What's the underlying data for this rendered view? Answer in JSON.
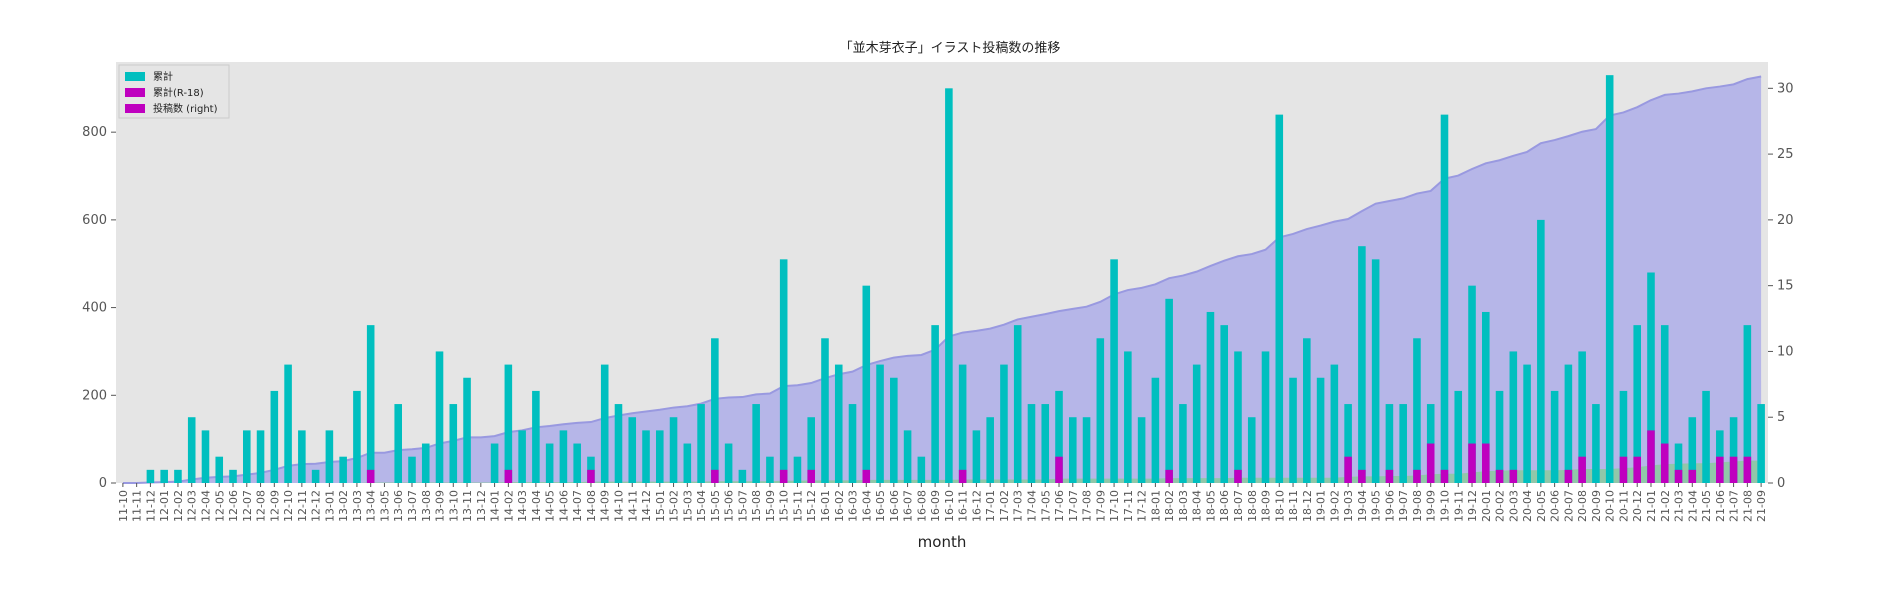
{
  "chart_data": {
    "type": "bar",
    "title": "「並木芽衣子」イラスト投稿数の推移",
    "xlabel": "month",
    "ylabel": "",
    "ylabel_right": "",
    "grid": false,
    "legend_placement": "top-left",
    "ylim_left": [
      0,
      960
    ],
    "ylim_right": [
      0,
      32
    ],
    "yticks_left": [
      "0",
      "200",
      "400",
      "600",
      "800"
    ],
    "yticks_right": [
      "0",
      "5",
      "10",
      "15",
      "20",
      "25",
      "30"
    ],
    "colors": {
      "posts_bar": "#00bfbf",
      "r18_bar": "#bf00bf",
      "cumulative_area_fill": "#b3b3e8",
      "cumulative_area_line": "#9999e0",
      "cumulative_r18_area": "#88cc99",
      "plot_background": "#e5e5e5"
    },
    "legend": [
      {
        "label": "累計",
        "color": "#00bfbf"
      },
      {
        "label": "累計(R-18)",
        "color": "#bf00bf"
      },
      {
        "label": "投稿数 (right)",
        "color": "#bf00bf"
      }
    ],
    "categories": [
      "11-10",
      "11-11",
      "11-12",
      "12-01",
      "12-02",
      "12-03",
      "12-04",
      "12-05",
      "12-06",
      "12-07",
      "12-08",
      "12-09",
      "12-10",
      "12-11",
      "12-12",
      "13-01",
      "13-02",
      "13-03",
      "13-04",
      "13-05",
      "13-06",
      "13-07",
      "13-08",
      "13-09",
      "13-10",
      "13-11",
      "13-12",
      "14-01",
      "14-02",
      "14-03",
      "14-04",
      "14-05",
      "14-06",
      "14-07",
      "14-08",
      "14-09",
      "14-10",
      "14-11",
      "14-12",
      "15-01",
      "15-02",
      "15-03",
      "15-04",
      "15-05",
      "15-06",
      "15-07",
      "15-08",
      "15-09",
      "15-10",
      "15-11",
      "15-12",
      "16-01",
      "16-02",
      "16-03",
      "16-04",
      "16-05",
      "16-06",
      "16-07",
      "16-08",
      "16-09",
      "16-10",
      "16-11",
      "16-12",
      "17-01",
      "17-02",
      "17-03",
      "17-04",
      "17-05",
      "17-06",
      "17-07",
      "17-08",
      "17-09",
      "17-10",
      "17-11",
      "17-12",
      "18-01",
      "18-02",
      "18-03",
      "18-04",
      "18-05",
      "18-06",
      "18-07",
      "18-08",
      "18-09",
      "18-10",
      "18-11",
      "18-12",
      "19-01",
      "19-02",
      "19-03",
      "19-04",
      "19-05",
      "19-06",
      "19-07",
      "19-08",
      "19-09",
      "19-10",
      "19-11",
      "19-12",
      "20-01",
      "20-02",
      "20-03",
      "20-04",
      "20-05",
      "20-06",
      "20-07",
      "20-08",
      "20-09",
      "20-10",
      "20-11",
      "20-12",
      "21-01",
      "21-02",
      "21-03",
      "21-04",
      "21-05",
      "21-06",
      "21-07",
      "21-08",
      "21-09"
    ],
    "series": [
      {
        "name": "投稿数 (right)",
        "axis": "right",
        "values": [
          0,
          0,
          1,
          1,
          1,
          5,
          4,
          2,
          1,
          4,
          4,
          7,
          9,
          4,
          1,
          4,
          2,
          7,
          12,
          0,
          6,
          2,
          3,
          10,
          6,
          8,
          0,
          3,
          9,
          4,
          7,
          3,
          4,
          3,
          2,
          9,
          6,
          5,
          4,
          4,
          5,
          3,
          6,
          11,
          3,
          1,
          6,
          2,
          17,
          2,
          5,
          11,
          9,
          6,
          15,
          9,
          8,
          4,
          2,
          12,
          30,
          9,
          4,
          5,
          9,
          12,
          6,
          6,
          7,
          5,
          5,
          11,
          17,
          10,
          5,
          8,
          14,
          6,
          9,
          13,
          12,
          10,
          5,
          10,
          28,
          8,
          11,
          8,
          9,
          6,
          18,
          17,
          6,
          6,
          11,
          6,
          28,
          7,
          15,
          13,
          7,
          10,
          9,
          20,
          7,
          9,
          10,
          6,
          31,
          7,
          12,
          16,
          12,
          3,
          5,
          7,
          4,
          5,
          12,
          6
        ]
      },
      {
        "name": "累計(R-18)",
        "axis": "right",
        "values": [
          0,
          0,
          0,
          0,
          0,
          0,
          0,
          0,
          0,
          0,
          0,
          0,
          0,
          0,
          0,
          0,
          0,
          0,
          1,
          0,
          0,
          0,
          0,
          0,
          0,
          0,
          0,
          0,
          1,
          0,
          0,
          0,
          0,
          0,
          1,
          0,
          0,
          0,
          0,
          0,
          0,
          0,
          0,
          1,
          0,
          0,
          0,
          0,
          1,
          0,
          1,
          0,
          0,
          0,
          1,
          0,
          0,
          0,
          0,
          0,
          0,
          1,
          0,
          0,
          0,
          0,
          0,
          0,
          2,
          0,
          0,
          0,
          0,
          0,
          0,
          0,
          1,
          0,
          0,
          0,
          0,
          1,
          0,
          0,
          0,
          0,
          0,
          0,
          0,
          2,
          1,
          0,
          1,
          0,
          1,
          3,
          1,
          0,
          3,
          3,
          1,
          1,
          0,
          0,
          0,
          1,
          2,
          0,
          0,
          2,
          2,
          4,
          3,
          1,
          1,
          0,
          2,
          2,
          2,
          0
        ]
      },
      {
        "name": "累計",
        "axis": "left",
        "values": [
          0,
          0,
          1,
          2,
          3,
          8,
          12,
          14,
          15,
          19,
          23,
          30,
          39,
          43,
          44,
          48,
          50,
          57,
          69,
          69,
          75,
          77,
          80,
          90,
          96,
          104,
          104,
          107,
          116,
          120,
          127,
          130,
          134,
          137,
          139,
          148,
          154,
          159,
          163,
          167,
          172,
          175,
          181,
          192,
          195,
          196,
          202,
          204,
          221,
          223,
          228,
          239,
          248,
          254,
          269,
          278,
          286,
          290,
          292,
          304,
          334,
          343,
          347,
          352,
          361,
          373,
          379,
          385,
          392,
          397,
          402,
          413,
          430,
          440,
          445,
          453,
          467,
          473,
          482,
          495,
          507,
          517,
          522,
          532,
          560,
          568,
          579,
          587,
          596,
          602,
          620,
          637,
          643,
          649,
          660,
          666,
          694,
          701,
          716,
          729,
          736,
          746,
          755,
          775,
          782,
          791,
          801,
          807,
          838,
          845,
          857,
          873,
          885,
          888,
          893,
          900,
          904,
          909,
          921,
          927
        ]
      },
      {
        "name": "累計(R-18)",
        "axis": "left",
        "values": [
          0,
          0,
          0,
          0,
          0,
          0,
          0,
          0,
          0,
          0,
          0,
          0,
          0,
          0,
          0,
          0,
          0,
          0,
          1,
          1,
          1,
          1,
          1,
          1,
          1,
          1,
          1,
          1,
          2,
          2,
          2,
          2,
          2,
          2,
          3,
          3,
          3,
          3,
          3,
          3,
          3,
          3,
          3,
          4,
          4,
          4,
          4,
          4,
          5,
          5,
          6,
          6,
          6,
          6,
          7,
          7,
          7,
          7,
          7,
          7,
          7,
          8,
          8,
          8,
          8,
          8,
          8,
          8,
          10,
          10,
          10,
          10,
          10,
          10,
          10,
          10,
          11,
          11,
          11,
          11,
          11,
          12,
          12,
          12,
          12,
          12,
          12,
          12,
          12,
          14,
          15,
          15,
          16,
          16,
          17,
          20,
          21,
          21,
          24,
          27,
          28,
          29,
          29,
          29,
          29,
          30,
          32,
          32,
          32,
          34,
          36,
          40,
          43,
          44,
          45,
          45,
          47,
          49,
          51,
          51
        ]
      }
    ]
  }
}
